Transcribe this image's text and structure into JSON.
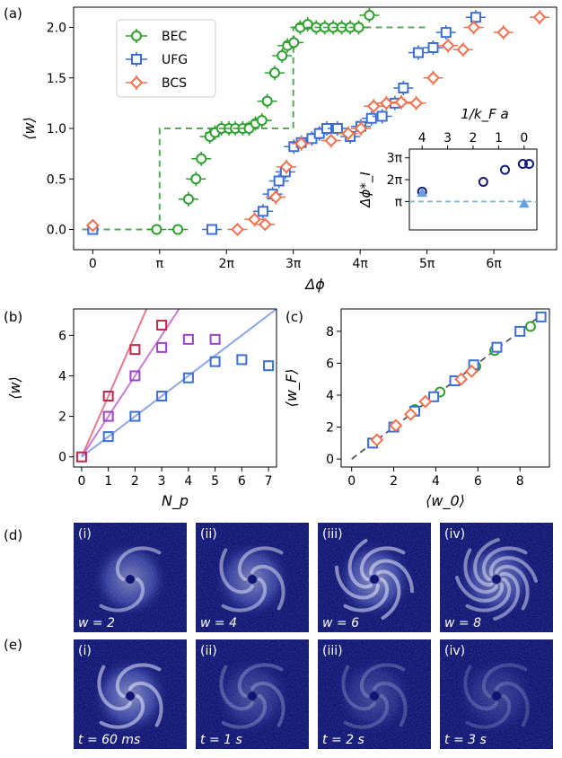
{
  "colors": {
    "BEC": "#2ca02c",
    "UFG": "#3b6fd8",
    "BCS": "#f4704e",
    "b_line1": "#e8798a",
    "b_line2": "#c97ad6",
    "b_line3": "#8ba6e6",
    "b_sq1": "#c4254a",
    "b_sq2": "#9b45c6",
    "b_sq3": "#3b6fd8",
    "dashed_a": "#54a954",
    "inset_blue": "#101a7a",
    "inset_tri": "#6a9de0",
    "inset_hline": "#7fb3c6",
    "image_bg": "#101574"
  },
  "panel_labels": [
    "(a)",
    "(b)",
    "(c)",
    "(d)",
    "(e)"
  ],
  "chart_data": [
    {
      "panel": "(a)",
      "type": "scatter",
      "xlabel": "Δϕ",
      "ylabel": "⟨w⟩",
      "xlim": [
        -0.9,
        21.8
      ],
      "ylim": [
        -0.2,
        2.2
      ],
      "x_unit": "π",
      "xticks": [
        0,
        3.14159,
        6.28319,
        9.42478,
        12.56637,
        15.70796,
        18.84956
      ],
      "xtick_labels": [
        "0",
        "π",
        "2π",
        "3π",
        "4π",
        "5π",
        "6π"
      ],
      "yticks": [
        0.0,
        0.5,
        1.0,
        1.5,
        2.0
      ],
      "ytick_labels": [
        "0.0",
        "0.5",
        "1.0",
        "1.5",
        "2.0"
      ],
      "legend": [
        "BEC",
        "UFG",
        "BCS"
      ],
      "legend_position": "top-left",
      "series": [
        {
          "name": "BEC",
          "marker": "circle",
          "x": [
            3.0,
            4.0,
            4.5,
            4.85,
            5.1,
            5.5,
            5.75,
            6.05,
            6.4,
            6.7,
            7.05,
            7.35,
            7.65,
            7.95,
            8.2,
            8.55,
            8.9,
            9.15,
            9.45,
            9.75,
            10.1,
            10.5,
            10.9,
            11.3,
            11.7,
            12.1,
            12.5,
            13.0
          ],
          "y": [
            0.0,
            0.0,
            0.3,
            0.5,
            0.7,
            0.92,
            0.96,
            1.0,
            1.0,
            1.0,
            1.0,
            1.0,
            1.05,
            1.08,
            1.27,
            1.55,
            1.72,
            1.82,
            1.85,
            2.0,
            2.03,
            2.0,
            2.0,
            2.0,
            2.0,
            2.0,
            2.0,
            2.12
          ]
        },
        {
          "name": "UFG",
          "marker": "square",
          "x": [
            0.0,
            5.6,
            8.0,
            8.45,
            8.75,
            9.05,
            9.45,
            9.8,
            10.3,
            10.65,
            11.0,
            11.5,
            12.1,
            12.6,
            13.1,
            13.6,
            14.2,
            14.6,
            15.3,
            16.0,
            16.6,
            18.0
          ],
          "y": [
            0.0,
            0.0,
            0.18,
            0.35,
            0.48,
            0.57,
            0.82,
            0.86,
            0.9,
            0.95,
            1.0,
            1.0,
            0.92,
            1.02,
            1.1,
            1.12,
            1.25,
            1.4,
            1.75,
            1.8,
            1.95,
            2.1
          ]
        },
        {
          "name": "BCS",
          "marker": "diamond",
          "x": [
            0.0,
            6.8,
            7.6,
            8.1,
            8.6,
            9.1,
            9.8,
            11.2,
            12.0,
            12.6,
            13.2,
            13.8,
            14.5,
            15.2,
            16.0,
            16.7,
            17.4,
            17.9,
            19.3,
            21.0
          ],
          "y": [
            0.04,
            0.0,
            0.1,
            0.05,
            0.32,
            0.62,
            0.85,
            0.88,
            0.95,
            1.0,
            1.22,
            1.25,
            1.26,
            1.25,
            1.5,
            1.82,
            1.78,
            2.0,
            1.95,
            2.1
          ]
        }
      ],
      "reference_line": {
        "style": "dashed",
        "x": [
          -0.5,
          3.14159,
          3.14159,
          9.42478,
          9.42478,
          15.70796
        ],
        "y": [
          0,
          0,
          1,
          1,
          2,
          2
        ]
      }
    },
    {
      "panel": "(a) inset",
      "type": "scatter",
      "ylabel": "Δϕ*_I",
      "top_xlabel": "1/k_F a",
      "xlim": [
        4.5,
        -0.5
      ],
      "ylim": [
        -0.3,
        3.4
      ],
      "xticks": [
        4,
        3,
        2,
        1,
        0
      ],
      "xtick_labels": [
        "4",
        "3",
        "2",
        "1",
        "0"
      ],
      "yticks": [
        1,
        2,
        3
      ],
      "ytick_labels": [
        "π",
        "2π",
        "3π"
      ],
      "series": [
        {
          "marker": "circle",
          "x": [
            4.0,
            1.6,
            0.75,
            0.05,
            -0.2
          ],
          "y": [
            1.45,
            1.9,
            2.45,
            2.72,
            2.72
          ]
        },
        {
          "marker": "triangle",
          "x": [
            4.0,
            0.0
          ],
          "y": [
            1.4,
            0.9
          ]
        }
      ],
      "hline_y": 1
    },
    {
      "panel": "(b)",
      "type": "scatter",
      "xlabel": "N_p",
      "ylabel": "⟨w⟩",
      "xlim": [
        -0.3,
        7.3
      ],
      "ylim": [
        -0.5,
        7.3
      ],
      "xticks": [
        0,
        1,
        2,
        3,
        4,
        5,
        6,
        7
      ],
      "xtick_labels": [
        "0",
        "1",
        "2",
        "3",
        "4",
        "5",
        "6",
        "7"
      ],
      "yticks": [
        0,
        2,
        4,
        6
      ],
      "ytick_labels": [
        "0",
        "2",
        "4",
        "6"
      ],
      "series": [
        {
          "color_key": "b_sq1",
          "x": [
            0,
            1,
            2,
            3
          ],
          "y": [
            0,
            3.0,
            5.3,
            6.5
          ]
        },
        {
          "color_key": "b_sq2",
          "x": [
            1,
            2,
            3,
            4,
            5
          ],
          "y": [
            2.0,
            4.0,
            5.4,
            5.8,
            5.8
          ]
        },
        {
          "color_key": "b_sq3",
          "x": [
            1,
            2,
            3,
            4,
            5,
            6,
            7
          ],
          "y": [
            1.0,
            2.0,
            3.0,
            3.9,
            4.7,
            4.8,
            4.5
          ]
        }
      ],
      "lines": [
        {
          "color_key": "b_line1",
          "slope": 3
        },
        {
          "color_key": "b_line2",
          "slope": 2
        },
        {
          "color_key": "b_line3",
          "slope": 1
        }
      ]
    },
    {
      "panel": "(c)",
      "type": "scatter",
      "xlabel": "⟨w_0⟩",
      "ylabel": "⟨w_F⟩",
      "xlim": [
        -0.5,
        9.4
      ],
      "ylim": [
        -0.5,
        9.4
      ],
      "xticks": [
        0,
        2,
        4,
        6,
        8
      ],
      "xtick_labels": [
        "0",
        "2",
        "4",
        "6",
        "8"
      ],
      "yticks": [
        0,
        2,
        4,
        6,
        8
      ],
      "ytick_labels": [
        "0",
        "2",
        "4",
        "6",
        "8"
      ],
      "series": [
        {
          "name": "BEC",
          "marker": "circle",
          "x": [
            1,
            2,
            3,
            4.2,
            5.9,
            6.8,
            8.5
          ],
          "y": [
            1,
            2,
            3.1,
            4.2,
            5.8,
            6.8,
            8.3
          ]
        },
        {
          "name": "UFG",
          "marker": "square",
          "x": [
            1,
            2,
            3,
            3.9,
            4.9,
            5.8,
            6.9,
            8.0,
            9.0
          ],
          "y": [
            1,
            2,
            3.0,
            3.9,
            4.9,
            5.9,
            7.0,
            8.0,
            8.9
          ]
        },
        {
          "name": "BCS",
          "marker": "diamond",
          "x": [
            1.2,
            2.1,
            2.8,
            3.5,
            5.2,
            5.7
          ],
          "y": [
            1.2,
            2.1,
            2.8,
            3.6,
            5.0,
            5.5
          ]
        }
      ],
      "reference_line": {
        "style": "dashed",
        "slope": 1
      }
    }
  ],
  "images": {
    "row_d": {
      "letter": "(d)",
      "items": [
        {
          "tag": "(i)",
          "caption": "w = 2",
          "arms": 2,
          "brightness": 0.85
        },
        {
          "tag": "(ii)",
          "caption": "w = 4",
          "arms": 4,
          "brightness": 0.85
        },
        {
          "tag": "(iii)",
          "caption": "w = 6",
          "arms": 6,
          "brightness": 0.95
        },
        {
          "tag": "(iv)",
          "caption": "w = 8",
          "arms": 8,
          "brightness": 0.85
        }
      ]
    },
    "row_e": {
      "letter": "(e)",
      "items": [
        {
          "tag": "(i)",
          "caption": "t = 60 ms",
          "arms": 4,
          "brightness": 0.95
        },
        {
          "tag": "(ii)",
          "caption": "t = 1 s",
          "arms": 4,
          "brightness": 0.45
        },
        {
          "tag": "(iii)",
          "caption": "t = 2 s",
          "arms": 4,
          "brightness": 0.4
        },
        {
          "tag": "(iv)",
          "caption": "t = 3 s",
          "arms": 4,
          "brightness": 0.35
        }
      ]
    }
  }
}
